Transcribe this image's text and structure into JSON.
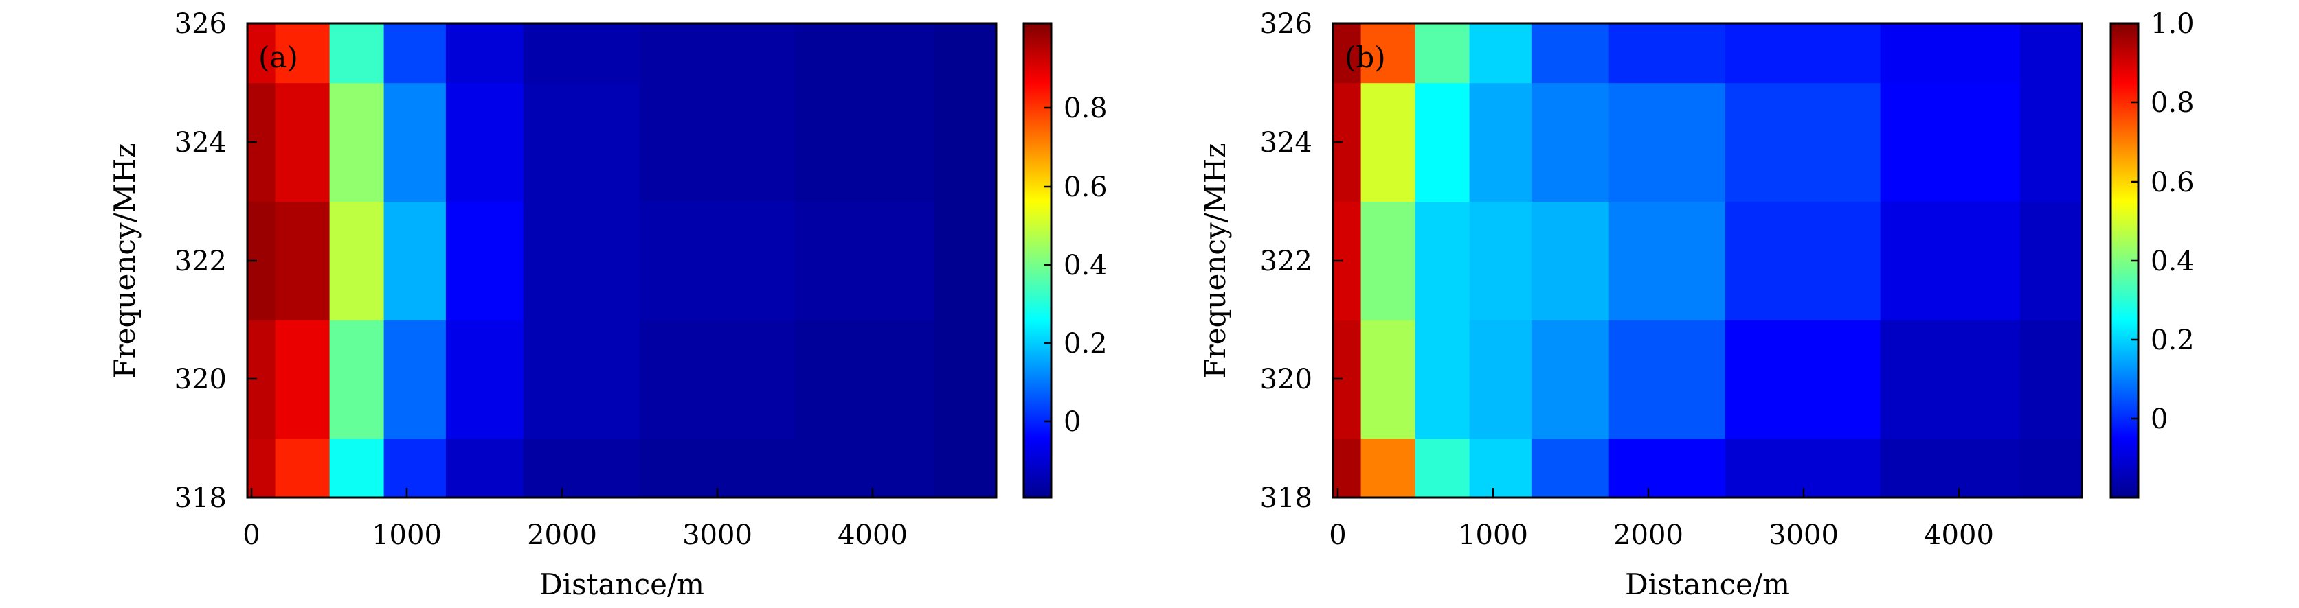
{
  "figure": {
    "panels": [
      {
        "label": "(a)",
        "xlabel": "Distance/m",
        "ylabel": "Frequency/MHz",
        "x_ticks": [
          "0",
          "1000",
          "2000",
          "3000",
          "4000"
        ],
        "y_ticks": [
          "318",
          "320",
          "322",
          "324",
          "326"
        ],
        "colorbar_ticks": [
          "0",
          "0.2",
          "0.4",
          "0.6",
          "0.8"
        ]
      },
      {
        "label": "(b)",
        "xlabel": "Distance/m",
        "ylabel": "Frequency/MHz",
        "x_ticks": [
          "0",
          "1000",
          "2000",
          "3000",
          "4000"
        ],
        "y_ticks": [
          "318",
          "320",
          "322",
          "324",
          "326"
        ],
        "colorbar_ticks": [
          "0",
          "0.2",
          "0.4",
          "0.6",
          "0.8",
          "1.0"
        ]
      }
    ]
  },
  "chart_data": [
    {
      "type": "heatmap",
      "panel_label": "(a)",
      "xlabel": "Distance/m",
      "ylabel": "Frequency/MHz",
      "xlim": [
        -30,
        4800
      ],
      "ylim": [
        318,
        326
      ],
      "x_ticks": [
        0,
        1000,
        2000,
        3000,
        4000
      ],
      "y_ticks": [
        318,
        320,
        322,
        324,
        326
      ],
      "colormap": "jet",
      "colorbar": {
        "range": [
          -0.14,
          1.0
        ],
        "ticks": [
          0,
          0.2,
          0.4,
          0.6,
          0.8
        ]
      },
      "x": [
        0,
        300,
        700,
        1000,
        1500,
        2000,
        3000,
        4000,
        4800
      ],
      "y": [
        318,
        320,
        322,
        324,
        326
      ],
      "z": [
        [
          0.92,
          0.82,
          0.3,
          0.05,
          -0.06,
          -0.1,
          -0.11,
          -0.11,
          -0.12
        ],
        [
          0.93,
          0.88,
          0.4,
          0.12,
          -0.02,
          -0.08,
          -0.1,
          -0.11,
          -0.12
        ],
        [
          0.97,
          0.95,
          0.5,
          0.2,
          0.0,
          -0.08,
          -0.09,
          -0.1,
          -0.12
        ],
        [
          0.95,
          0.9,
          0.45,
          0.15,
          -0.02,
          -0.08,
          -0.1,
          -0.11,
          -0.12
        ],
        [
          0.9,
          0.82,
          0.35,
          0.08,
          -0.04,
          -0.09,
          -0.1,
          -0.11,
          -0.12
        ]
      ],
      "grid": false,
      "legend": "colorbar-right"
    },
    {
      "type": "heatmap",
      "panel_label": "(b)",
      "xlabel": "Distance/m",
      "ylabel": "Frequency/MHz",
      "xlim": [
        -30,
        4800
      ],
      "ylim": [
        318,
        326
      ],
      "x_ticks": [
        0,
        1000,
        2000,
        3000,
        4000
      ],
      "y_ticks": [
        318,
        320,
        322,
        324,
        326
      ],
      "colormap": "jet",
      "colorbar": {
        "range": [
          -0.2,
          1.0
        ],
        "ticks": [
          0,
          0.2,
          0.4,
          0.6,
          0.8,
          1.0
        ]
      },
      "x": [
        0,
        300,
        700,
        1000,
        1500,
        2000,
        3000,
        4000,
        4800
      ],
      "y": [
        318,
        320,
        322,
        324,
        326
      ],
      "z": [
        [
          0.95,
          0.7,
          0.3,
          0.2,
          0.05,
          -0.05,
          -0.1,
          -0.14,
          -0.15
        ],
        [
          0.92,
          0.45,
          0.2,
          0.17,
          0.12,
          0.05,
          -0.05,
          -0.12,
          -0.14
        ],
        [
          0.9,
          0.4,
          0.2,
          0.18,
          0.16,
          0.1,
          0.0,
          -0.08,
          -0.12
        ],
        [
          0.92,
          0.5,
          0.25,
          0.15,
          0.1,
          0.08,
          0.02,
          -0.05,
          -0.1
        ],
        [
          0.96,
          0.75,
          0.35,
          0.2,
          0.05,
          0.0,
          -0.02,
          -0.06,
          -0.1
        ]
      ],
      "grid": false,
      "legend": "colorbar-right"
    }
  ]
}
